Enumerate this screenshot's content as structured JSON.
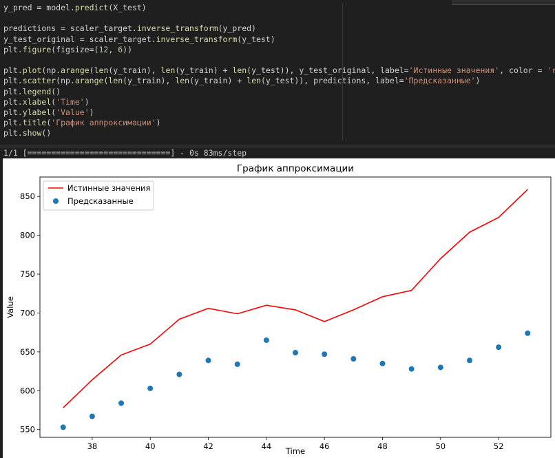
{
  "code_lines": [
    "y_pred = model.predict(X_test)",
    "",
    "predictions = scaler_target.inverse_transform(y_pred)",
    "y_test_original = scaler_target.inverse_transform(y_test)",
    "plt.figure(figsize=(12, 6))",
    "",
    "plt.plot(np.arange(len(y_train), len(y_train) + len(y_test)), y_test_original, label='Истинные значения', color = 'red')",
    "plt.scatter(np.arange(len(y_train), len(y_train) + len(y_test)), predictions, label='Предсказанные')",
    "plt.legend()",
    "plt.xlabel('Time')",
    "plt.ylabel('Value')",
    "plt.title('График аппроксимации')",
    "plt.show()"
  ],
  "output_stream": "1/1 [==============================] - 0s 83ms/step",
  "colors": {
    "line": "#ff0000",
    "scatter": "#1f77b4"
  },
  "chart_data": {
    "type": "line",
    "title": "График аппроксимации",
    "xlabel": "Time",
    "ylabel": "Value",
    "xlim": [
      36.2,
      53.8
    ],
    "ylim": [
      540,
      875
    ],
    "xticks": [
      38,
      40,
      42,
      44,
      46,
      48,
      50,
      52
    ],
    "yticks": [
      550,
      600,
      650,
      700,
      750,
      800,
      850
    ],
    "legend": "top-left",
    "grid": false,
    "x": [
      37,
      38,
      39,
      40,
      41,
      42,
      43,
      44,
      45,
      46,
      47,
      48,
      49,
      50,
      51,
      52,
      53
    ],
    "series": [
      {
        "name": "Истинные значения",
        "kind": "line",
        "values": [
          578,
          614,
          646,
          660,
          692,
          706,
          699,
          710,
          704,
          689,
          704,
          721,
          729,
          770,
          804,
          823,
          859
        ]
      },
      {
        "name": "Предсказанные",
        "kind": "scatter",
        "values": [
          553,
          567,
          584,
          603,
          621,
          639,
          634,
          665,
          649,
          647,
          641,
          635,
          628,
          630,
          639,
          656,
          674
        ]
      }
    ]
  }
}
